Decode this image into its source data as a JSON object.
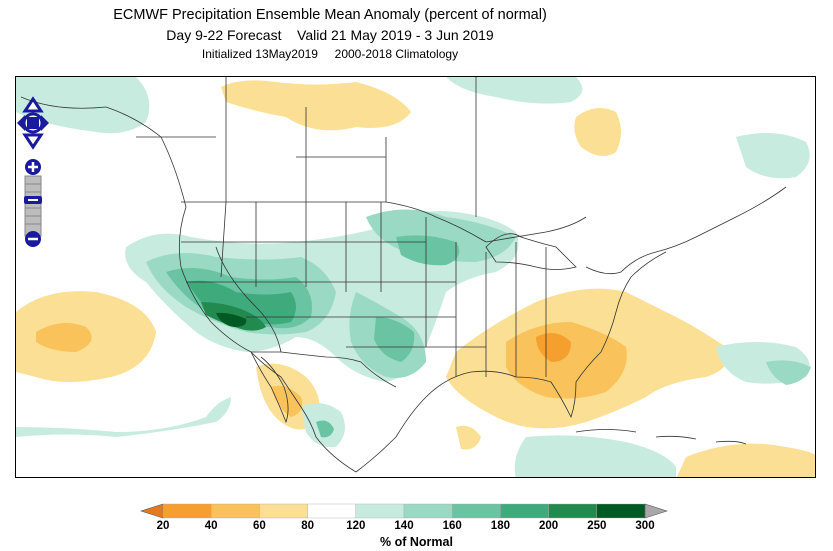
{
  "header": {
    "title": "ECMWF Precipitation Ensemble Mean Anomaly (percent of normal)",
    "forecast": "Day 9-22 Forecast",
    "valid": "Valid 21 May 2019 - 3 Jun 2019",
    "initialized": "Initialized 13May2019",
    "climatology": "2000-2018 Climatology"
  },
  "legend": {
    "title": "% of Normal",
    "ticks": [
      "20",
      "40",
      "60",
      "80",
      "120",
      "140",
      "160",
      "180",
      "200",
      "250",
      "300"
    ],
    "colors": {
      "under": "#e8781e",
      "bins": [
        "#f5a02e",
        "#f9c25a",
        "#fbdf94",
        "#ffffff",
        "#c8ebe0",
        "#9ad9c4",
        "#6ac4a4",
        "#3fab7c",
        "#228a4e",
        "#005a24"
      ],
      "over": "#a8a8a8"
    }
  },
  "controls": {
    "pan_up": "pan-up",
    "pan_down": "pan-down",
    "pan_left": "pan-left",
    "pan_right": "pan-right",
    "zoom_in": "zoom-in",
    "zoom_out": "zoom-out"
  }
}
